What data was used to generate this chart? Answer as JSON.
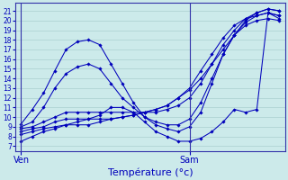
{
  "bg_color": "#cceaea",
  "grid_color": "#aad0d0",
  "line_color": "#0000bb",
  "spine_color": "#3333aa",
  "xlabel": "Température (°c)",
  "xlabel_fontsize": 8,
  "ylim": [
    6.5,
    21.8
  ],
  "yticks": [
    7,
    8,
    9,
    10,
    11,
    12,
    13,
    14,
    15,
    16,
    17,
    18,
    19,
    20,
    21
  ],
  "ytick_fontsize": 5.5,
  "xtick_labels": [
    "Ven",
    "Sam"
  ],
  "xtick_fontsize": 7,
  "ven_x": 0,
  "sam_x": 15,
  "xlim": [
    -0.5,
    23.5
  ],
  "series": [
    [
      9.3,
      10.8,
      12.5,
      14.8,
      17.0,
      17.8,
      18.0,
      17.5,
      15.5,
      13.5,
      11.5,
      10.0,
      9.2,
      8.8,
      8.5,
      9.0,
      10.5,
      13.5,
      16.5,
      18.5,
      20.0,
      20.8,
      21.2,
      21.0
    ],
    [
      9.0,
      9.5,
      11.0,
      13.0,
      14.5,
      15.2,
      15.5,
      15.0,
      13.5,
      12.0,
      11.0,
      10.0,
      9.5,
      9.2,
      9.2,
      9.8,
      11.5,
      14.0,
      16.5,
      18.5,
      19.8,
      20.5,
      20.8,
      20.5
    ],
    [
      8.8,
      9.0,
      9.5,
      10.0,
      10.5,
      10.5,
      10.5,
      10.5,
      10.5,
      10.5,
      10.5,
      10.5,
      10.5,
      10.8,
      11.2,
      12.0,
      13.5,
      15.5,
      17.5,
      19.0,
      20.2,
      20.8,
      21.2,
      21.0
    ],
    [
      8.5,
      8.8,
      9.0,
      9.5,
      9.8,
      9.8,
      9.8,
      9.8,
      9.8,
      10.0,
      10.2,
      10.5,
      10.8,
      11.2,
      12.0,
      13.0,
      14.8,
      16.5,
      18.2,
      19.5,
      20.2,
      20.5,
      20.8,
      20.5
    ],
    [
      8.2,
      8.5,
      8.8,
      9.0,
      9.2,
      9.2,
      9.2,
      9.5,
      9.8,
      10.0,
      10.2,
      10.5,
      10.8,
      11.2,
      12.0,
      12.8,
      14.0,
      15.5,
      17.0,
      18.5,
      19.5,
      20.0,
      20.2,
      20.0
    ],
    [
      7.5,
      8.0,
      8.5,
      8.8,
      9.2,
      9.5,
      9.8,
      10.2,
      11.0,
      11.0,
      10.5,
      9.5,
      8.5,
      8.0,
      7.5,
      7.5,
      7.8,
      8.5,
      9.5,
      10.8,
      10.5,
      10.8,
      20.8,
      20.2
    ]
  ]
}
